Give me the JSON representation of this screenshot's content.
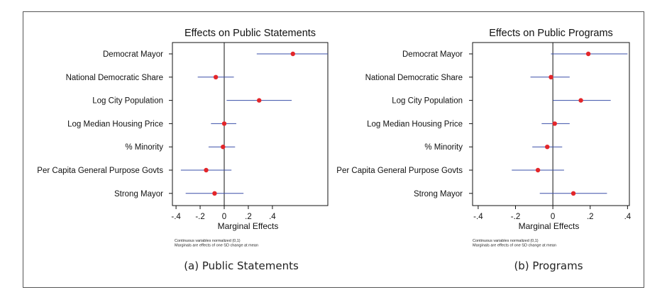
{
  "chart_data": [
    {
      "type": "scatter",
      "title": "Effects on Public Statements",
      "xlabel": "Marginal Effects",
      "xlim": [
        -0.43,
        0.86
      ],
      "xticks": [
        "-.4",
        "-.2",
        "0",
        ".2",
        ".4"
      ],
      "xtick_values": [
        -0.4,
        -0.2,
        0,
        0.2,
        0.4
      ],
      "categories": [
        "Democrat Mayor",
        "National Democratic Share",
        "Log City Population",
        "Log Median Housing Price",
        "% Minority",
        "Per Capita General Purpose Govts",
        "Strong Mayor"
      ],
      "estimates": [
        0.57,
        -0.07,
        0.29,
        0.0,
        -0.01,
        -0.15,
        -0.08
      ],
      "ci_low": [
        0.27,
        -0.22,
        0.02,
        -0.11,
        -0.13,
        -0.36,
        -0.32
      ],
      "ci_high": [
        0.86,
        0.08,
        0.56,
        0.1,
        0.09,
        0.06,
        0.16
      ],
      "notes": [
        "Continuous variables normalized (0,1)",
        "Marginals are effects of one SD change at mean"
      ],
      "caption": "(a)  Public Statements",
      "colors": {
        "point": "#e3262a",
        "ci": "#3a4fa8",
        "axis": "#111111"
      }
    },
    {
      "type": "scatter",
      "title": "Effects on Public Programs",
      "xlabel": "Marginal Effects",
      "xlim": [
        -0.43,
        0.41
      ],
      "xticks": [
        "-.4",
        "-.2",
        "0",
        ".2",
        ".4"
      ],
      "xtick_values": [
        -0.4,
        -0.2,
        0,
        0.2,
        0.4
      ],
      "categories": [
        "Democrat Mayor",
        "National Democratic Share",
        "Log City Population",
        "Log Median Housing Price",
        "% Minority",
        "Per Capita General Purpose Govts",
        "Strong Mayor"
      ],
      "estimates": [
        0.19,
        -0.01,
        0.15,
        0.01,
        -0.03,
        -0.08,
        0.11
      ],
      "ci_low": [
        -0.01,
        -0.12,
        0.0,
        -0.06,
        -0.11,
        -0.22,
        -0.07
      ],
      "ci_high": [
        0.4,
        0.09,
        0.31,
        0.09,
        0.05,
        0.06,
        0.29
      ],
      "notes": [
        "Continuous variables normalized (0,1)",
        "Marginals are effects of one SD change at mean"
      ],
      "caption": "(b) Programs",
      "colors": {
        "point": "#e3262a",
        "ci": "#3a4fa8",
        "axis": "#111111"
      }
    }
  ]
}
